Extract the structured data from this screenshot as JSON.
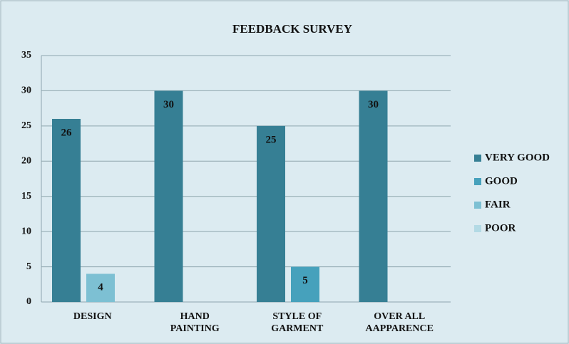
{
  "chart_data": {
    "type": "bar",
    "title": "FEEDBACK  SURVEY",
    "categories": [
      "DESIGN",
      "HAND PAINTING",
      "STYLE OF GARMENT",
      "OVER ALL AAPPARENCE"
    ],
    "series": [
      {
        "name": "VERY GOOD",
        "color": "#367f94",
        "values": [
          26,
          30,
          25,
          30
        ]
      },
      {
        "name": "GOOD",
        "color": "#46a1bc",
        "values": [
          null,
          null,
          5,
          null
        ]
      },
      {
        "name": "FAIR",
        "color": "#7dc0d3",
        "values": [
          4,
          null,
          null,
          null
        ]
      },
      {
        "name": "POOR",
        "color": "#b3dae5",
        "values": [
          null,
          null,
          null,
          null
        ]
      }
    ],
    "ylim": [
      0,
      35
    ],
    "yticks": [
      0,
      5,
      10,
      15,
      20,
      25,
      30,
      35
    ],
    "grid": true,
    "legend": "right"
  }
}
